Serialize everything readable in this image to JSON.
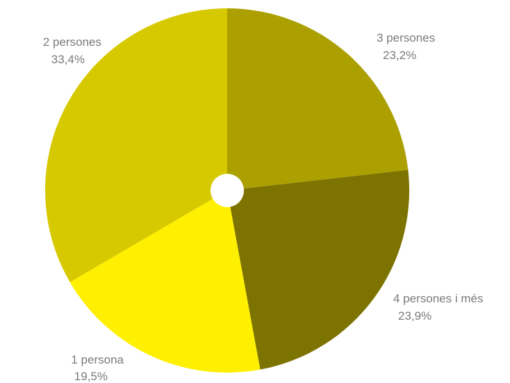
{
  "chart_data": {
    "type": "pie",
    "title": "",
    "slices": [
      {
        "category": "3 persones",
        "value": 23.2,
        "label": "23,2%",
        "color": "#aba000"
      },
      {
        "category": "4 persones i més",
        "value": 23.9,
        "label": "23,9%",
        "color": "#7d7300"
      },
      {
        "category": "1 persona",
        "value": 19.5,
        "label": "19,5%",
        "color": "#ffef00"
      },
      {
        "category": "2 persones",
        "value": 33.4,
        "label": "33,4%",
        "color": "#d7c900"
      }
    ],
    "start": "12 o'clock, clockwise",
    "center_hole": true,
    "legend": "none (labels beside slices)"
  }
}
